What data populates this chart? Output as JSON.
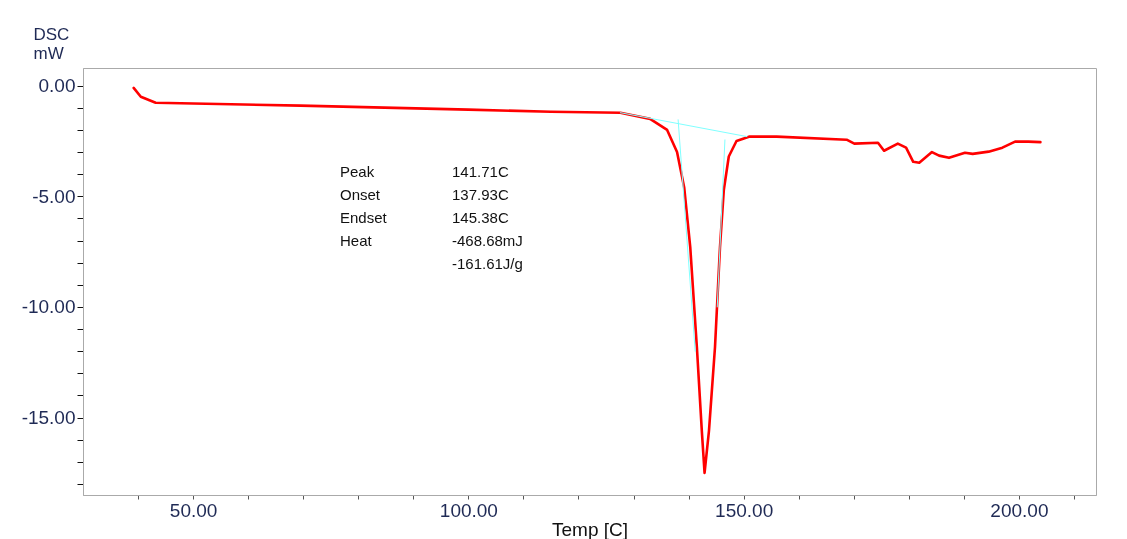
{
  "chart_data": {
    "type": "line",
    "xlabel": "Temp  [C]",
    "ylabel": "DSC\nmW",
    "xlim": [
      30,
      214
    ],
    "ylim": [
      -18.5,
      0.8
    ],
    "xticks": [
      {
        "value": 40,
        "label": null
      },
      {
        "value": 50,
        "label": "50.00"
      },
      {
        "value": 60,
        "label": null
      },
      {
        "value": 70,
        "label": null
      },
      {
        "value": 80,
        "label": null
      },
      {
        "value": 90,
        "label": null
      },
      {
        "value": 100,
        "label": "100.00"
      },
      {
        "value": 110,
        "label": null
      },
      {
        "value": 120,
        "label": null
      },
      {
        "value": 130,
        "label": null
      },
      {
        "value": 140,
        "label": null
      },
      {
        "value": 150,
        "label": "150.00"
      },
      {
        "value": 160,
        "label": null
      },
      {
        "value": 170,
        "label": null
      },
      {
        "value": 180,
        "label": null
      },
      {
        "value": 190,
        "label": null
      },
      {
        "value": 200,
        "label": "200.00"
      },
      {
        "value": 210,
        "label": null
      }
    ],
    "yticks": [
      {
        "value": 0,
        "label": "0.00"
      },
      {
        "value": -1,
        "label": null
      },
      {
        "value": -2,
        "label": null
      },
      {
        "value": -3,
        "label": null
      },
      {
        "value": -4,
        "label": null
      },
      {
        "value": -5,
        "label": "-5.00"
      },
      {
        "value": -6,
        "label": null
      },
      {
        "value": -7,
        "label": null
      },
      {
        "value": -8,
        "label": null
      },
      {
        "value": -9,
        "label": null
      },
      {
        "value": -10,
        "label": "-10.00"
      },
      {
        "value": -11,
        "label": null
      },
      {
        "value": -12,
        "label": null
      },
      {
        "value": -13,
        "label": null
      },
      {
        "value": -14,
        "label": null
      },
      {
        "value": -15,
        "label": "-15.00"
      },
      {
        "value": -16,
        "label": null
      },
      {
        "value": -17,
        "label": null
      },
      {
        "value": -18,
        "label": null
      }
    ],
    "grid": false,
    "line_style": "solid",
    "marker": "none",
    "annotations": [
      "Peak\t141.71C",
      "Onset\t137.93C",
      "Endset\t145.38C",
      "Heat\t-468.68mJ",
      "\t-161.61J/g"
    ],
    "series": [
      {
        "color": "#ff0000",
        "x": [
          39.2,
          40.5,
          43.2,
          69.5,
          100,
          115,
          127.6,
          133,
          136.1,
          137.9,
          139.2,
          140.3,
          141.5,
          142.4,
          142.9,
          143.7,
          144.8,
          145.7,
          146.4,
          147.3,
          148.7,
          151.1,
          156,
          168.7,
          170.1,
          174.4,
          175.5,
          178,
          179.5,
          180.8,
          181.9,
          184.2,
          185.5,
          187.3,
          190.2,
          191.6,
          194.5,
          197,
          199.3,
          201.7,
          203.9
        ],
        "values": [
          -0.1,
          -0.5,
          -0.77,
          -0.9,
          -1.08,
          -1.18,
          -1.22,
          -1.5,
          -2.0,
          -3.0,
          -4.6,
          -7.3,
          -11.8,
          -15.6,
          -17.5,
          -15.6,
          -11.8,
          -7.3,
          -4.7,
          -3.2,
          -2.5,
          -2.3,
          -2.3,
          -2.44,
          -2.62,
          -2.58,
          -2.94,
          -2.62,
          -2.8,
          -3.44,
          -3.48,
          -3.0,
          -3.16,
          -3.26,
          -3.03,
          -3.08,
          -2.98,
          -2.8,
          -2.53,
          -2.53,
          -2.55
        ]
      },
      {
        "color": "#80ffff",
        "type": "line",
        "x": [
          127.6,
          150.6
        ],
        "values": [
          -1.22,
          -2.3
        ]
      },
      {
        "color": "#80ffff",
        "type": "line",
        "x": [
          138.1,
          141.2
        ],
        "values": [
          -1.54,
          -12
        ]
      },
      {
        "color": "#80ffff",
        "type": "line",
        "x": [
          146.6,
          145.2
        ],
        "values": [
          -2.45,
          -10
        ]
      }
    ]
  }
}
